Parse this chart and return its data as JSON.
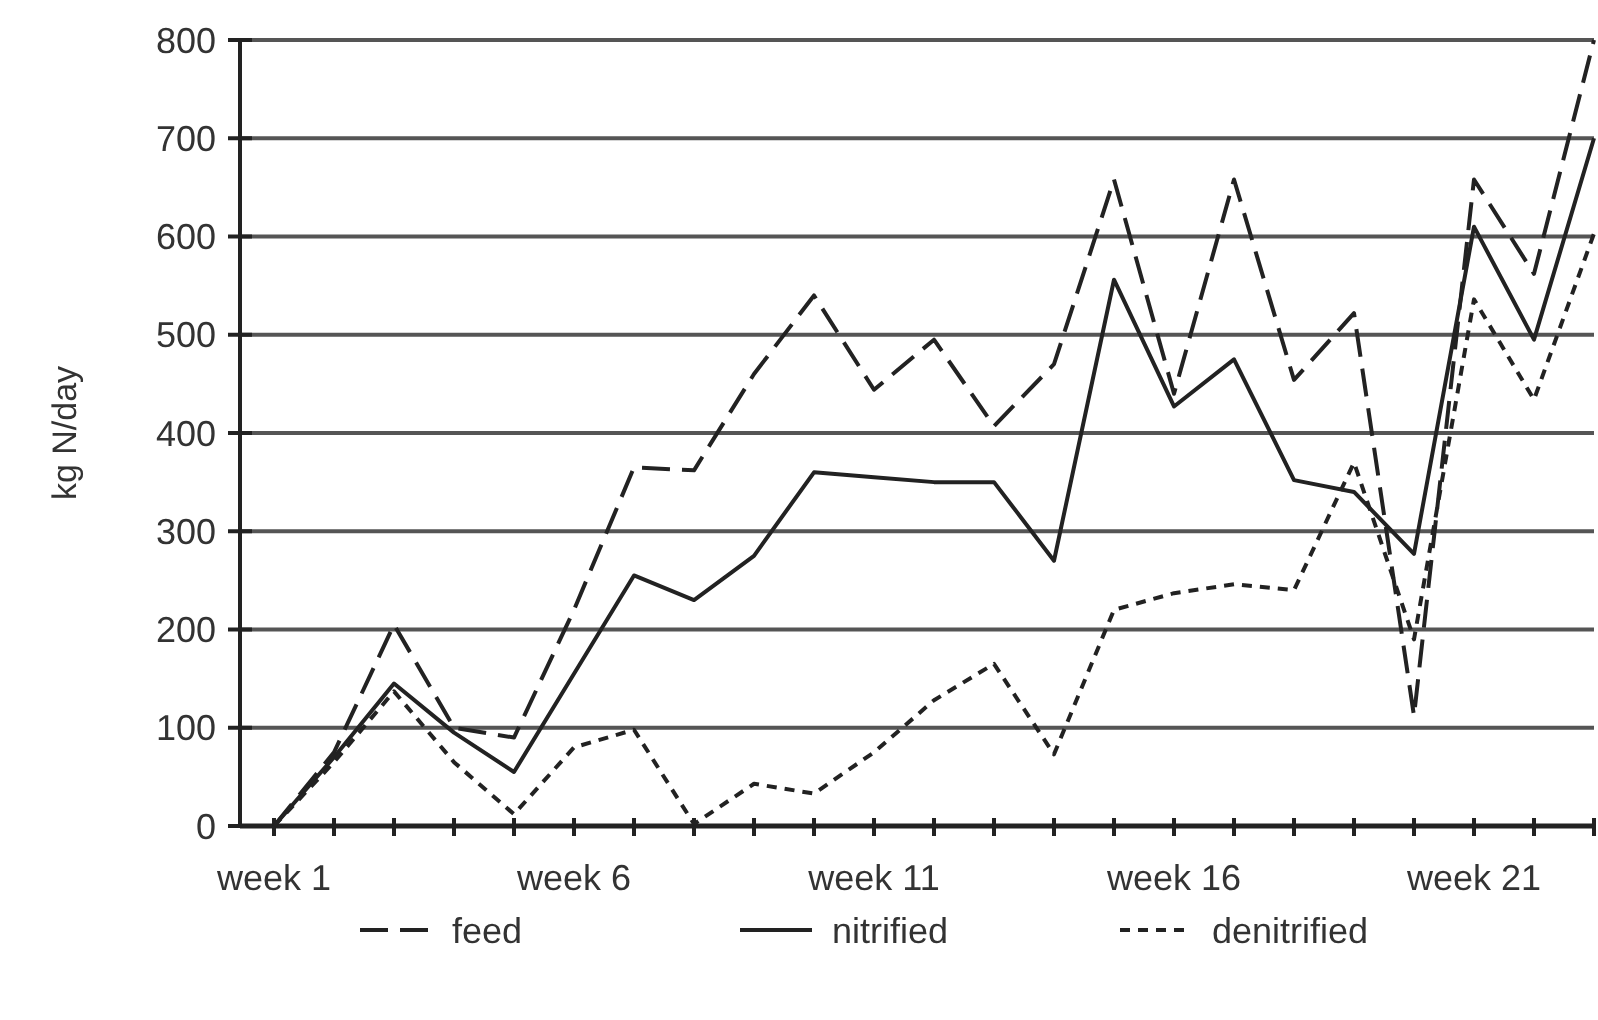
{
  "chart_data": {
    "type": "line",
    "ylabel": "kg N/day",
    "categories": [
      "week 1",
      null,
      null,
      null,
      null,
      "week 6",
      null,
      null,
      null,
      null,
      "week 11",
      null,
      null,
      null,
      null,
      "week 16",
      null,
      null,
      null,
      null,
      "week 21",
      null,
      null
    ],
    "ylim": [
      0,
      800
    ],
    "yticks": [
      0,
      100,
      200,
      300,
      400,
      500,
      600,
      700,
      800
    ],
    "grid": "y",
    "legend": "bottom",
    "marker": "none",
    "series": [
      {
        "name": "feed",
        "color": "#222222",
        "line_style": "dashed",
        "values": [
          0,
          75,
          205,
          100,
          90,
          220,
          365,
          362,
          460,
          540,
          444,
          495,
          407,
          470,
          658,
          440,
          658,
          454,
          522,
          112,
          658,
          562,
          800
        ]
      },
      {
        "name": "nitrified",
        "color": "#222222",
        "line_style": "solid",
        "values": [
          0,
          70,
          145,
          95,
          55,
          155,
          255,
          230,
          275,
          360,
          355,
          350,
          350,
          270,
          556,
          427,
          475,
          352,
          340,
          277,
          610,
          495,
          700
        ]
      },
      {
        "name": "denitrified",
        "color": "#222222",
        "line_style": "dotted",
        "values": [
          0,
          65,
          137,
          65,
          12,
          80,
          98,
          2,
          43,
          33,
          75,
          128,
          165,
          73,
          220,
          237,
          246,
          240,
          370,
          190,
          536,
          434,
          603
        ]
      }
    ]
  }
}
